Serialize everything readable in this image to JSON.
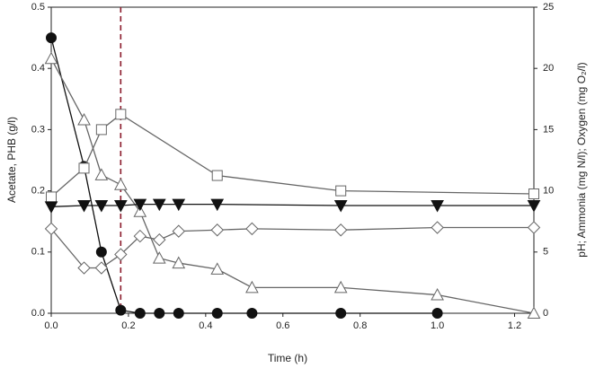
{
  "chart_data": {
    "type": "line",
    "x_label": "Time (h)",
    "y_label": "Acetate, PHB (g/l)",
    "y2_label": "pH; Ammonia (mg N/l); Oxygen (mg O₂/l)",
    "xlim": [
      0,
      1.25
    ],
    "xticks": [
      {
        "value": 0,
        "label": "0.0"
      },
      {
        "value": 0.2,
        "label": "0.2"
      },
      {
        "value": 0.4,
        "label": "0.4"
      },
      {
        "value": 0.6,
        "label": "0.6"
      },
      {
        "value": 0.8,
        "label": "0.8"
      },
      {
        "value": 1,
        "label": "1.0"
      },
      {
        "value": 1.2,
        "label": "1.2"
      }
    ],
    "ylim": [
      0,
      0.5
    ],
    "yticks": [
      {
        "value": 0,
        "label": "0.0"
      },
      0.1,
      0.2,
      0.3,
      0.4,
      0.5
    ],
    "y2lim": [
      0,
      25
    ],
    "y2ticks": [
      0,
      5,
      10,
      15,
      20,
      25
    ],
    "vline": {
      "x": 0.18,
      "color": "#8b1a2b"
    },
    "series": [
      {
        "marker": "circle",
        "filled": true,
        "color": "#111111",
        "x": [
          0,
          0.085,
          0.13,
          0.18,
          0.23,
          0.28,
          0.33,
          0.43,
          0.52,
          0.75,
          1.0
        ],
        "values": [
          0.45,
          0.24,
          0.1,
          0.005,
          0,
          0,
          0,
          0,
          0,
          0,
          0
        ]
      },
      {
        "marker": "square",
        "filled": false,
        "color": "#666666",
        "x": [
          0,
          0.085,
          0.13,
          0.18,
          0.43,
          0.75,
          1.25
        ],
        "values": [
          0.19,
          0.237,
          0.3,
          0.325,
          0.225,
          0.2,
          0.195
        ]
      },
      {
        "marker": "triangle-up",
        "filled": false,
        "color": "#666666",
        "axis": "y2",
        "x": [
          0,
          0.085,
          0.13,
          0.18,
          0.23,
          0.28,
          0.33,
          0.43,
          0.52,
          0.75,
          1.0,
          1.25
        ],
        "values": [
          20.8,
          15.8,
          11.3,
          10.5,
          8.3,
          4.5,
          4.1,
          3.6,
          2.1,
          2.1,
          1.5,
          0
        ]
      },
      {
        "marker": "triangle-down",
        "filled": true,
        "color": "#111111",
        "axis": "y2",
        "x": [
          0,
          0.085,
          0.13,
          0.18,
          0.23,
          0.28,
          0.33,
          0.43,
          0.75,
          1.0,
          1.25
        ],
        "values": [
          8.7,
          8.8,
          8.8,
          8.8,
          8.9,
          8.9,
          8.9,
          8.9,
          8.8,
          8.8,
          8.8
        ]
      },
      {
        "marker": "diamond",
        "filled": false,
        "color": "#666666",
        "axis": "y2",
        "x": [
          0,
          0.085,
          0.13,
          0.18,
          0.23,
          0.28,
          0.33,
          0.43,
          0.52,
          0.75,
          1.0,
          1.25
        ],
        "values": [
          6.9,
          3.7,
          3.7,
          4.8,
          6.3,
          6.0,
          6.7,
          6.8,
          6.9,
          6.8,
          7.0,
          7.0
        ]
      }
    ]
  }
}
